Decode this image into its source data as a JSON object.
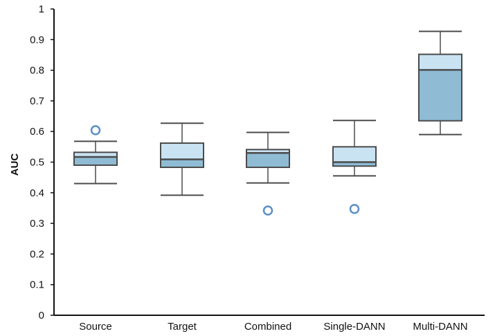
{
  "chart_data": {
    "type": "boxplot",
    "title": "",
    "xlabel": "",
    "ylabel": "AUC",
    "ylim": [
      0,
      1
    ],
    "yticks": [
      "0",
      "0.1",
      "0.2",
      "0.3",
      "0.4",
      "0.5",
      "0.6",
      "0.7",
      "0.8",
      "0.9",
      "1"
    ],
    "grid": false,
    "categories": [
      "Source",
      "Target",
      "Combined",
      "Single-DANN",
      "Multi-DANN"
    ],
    "boxes": [
      {
        "category": "Source",
        "whisker_low": 0.43,
        "q1": 0.49,
        "median": 0.517,
        "q3": 0.532,
        "whisker_high": 0.568,
        "outliers": [
          0.604
        ]
      },
      {
        "category": "Target",
        "whisker_low": 0.392,
        "q1": 0.483,
        "median": 0.509,
        "q3": 0.562,
        "whisker_high": 0.627,
        "outliers": []
      },
      {
        "category": "Combined",
        "whisker_low": 0.432,
        "q1": 0.483,
        "median": 0.53,
        "q3": 0.541,
        "whisker_high": 0.597,
        "outliers": [
          0.342
        ]
      },
      {
        "category": "Single-DANN",
        "whisker_low": 0.455,
        "q1": 0.487,
        "median": 0.5,
        "q3": 0.55,
        "whisker_high": 0.636,
        "outliers": [
          0.347
        ]
      },
      {
        "category": "Multi-DANN",
        "whisker_low": 0.59,
        "q1": 0.635,
        "median": 0.801,
        "q3": 0.852,
        "whisker_high": 0.927,
        "outliers": []
      }
    ],
    "colors": {
      "lower_half_fill": "#8fbcd4",
      "upper_half_fill": "#c9e3f3",
      "box_edge": "#4a4a4a",
      "outlier_edge": "#5b8fc7",
      "axis": "#111111"
    }
  }
}
